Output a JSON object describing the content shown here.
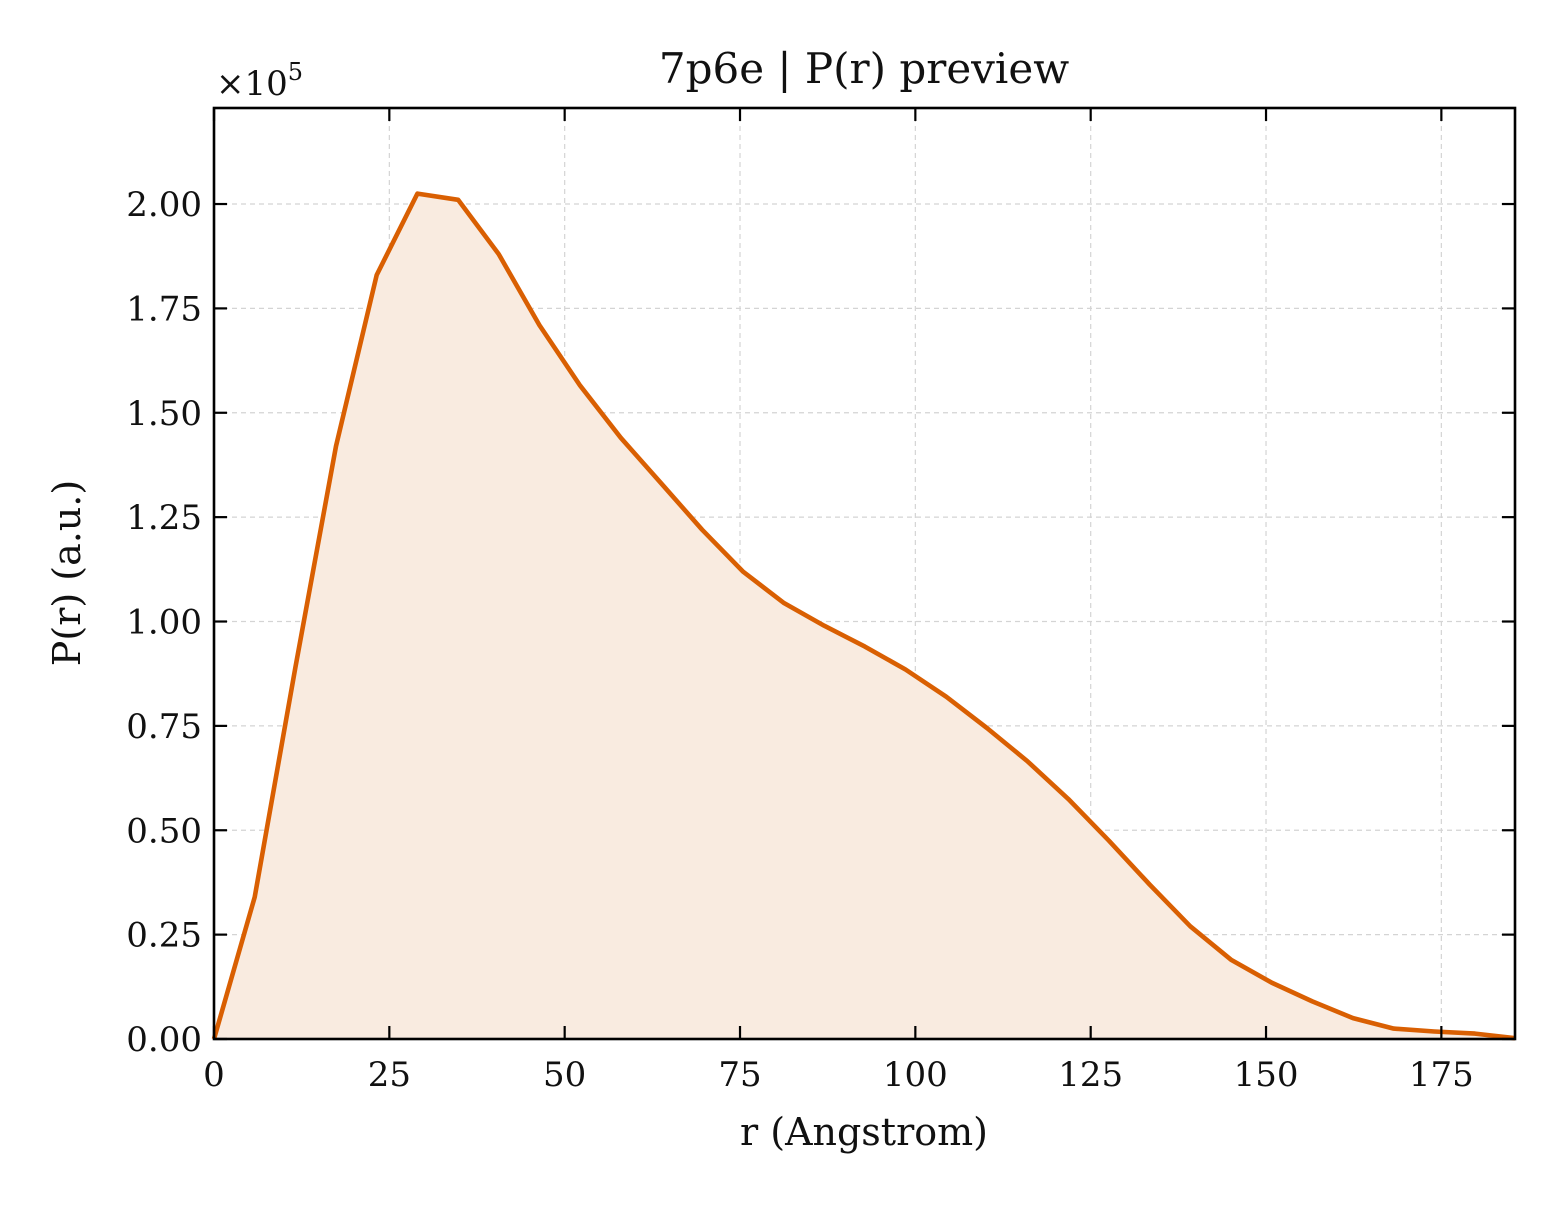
{
  "chart_data": {
    "type": "area",
    "title": "7p6e | P(r) preview",
    "xlabel": "r (Angstrom)",
    "ylabel": "P(r) (a.u.)",
    "y_multiplier_label": "×10",
    "y_multiplier_exponent": "5",
    "xlim": [
      0,
      185.5
    ],
    "ylim": [
      0,
      2.23
    ],
    "y_scale_factor": 100000,
    "grid": true,
    "line_color": "#d95f02",
    "fill_color": "#f9ebe0",
    "x_ticks": [
      0,
      25,
      50,
      75,
      100,
      125,
      150,
      175
    ],
    "x_tick_labels": [
      "0",
      "25",
      "50",
      "75",
      "100",
      "125",
      "150",
      "175"
    ],
    "y_ticks": [
      0,
      0.25,
      0.5,
      0.75,
      1.0,
      1.25,
      1.5,
      1.75,
      2.0
    ],
    "y_tick_labels": [
      "0.00",
      "0.25",
      "0.50",
      "0.75",
      "1.00",
      "1.25",
      "1.50",
      "1.75",
      "2.00"
    ],
    "series": [
      {
        "x": [
          0,
          5.8,
          11.6,
          17.4,
          23.2,
          29.0,
          34.8,
          40.6,
          46.4,
          52.2,
          58.0,
          63.8,
          69.6,
          75.4,
          81.2,
          87.0,
          92.8,
          98.6,
          104.4,
          110.2,
          116.0,
          121.8,
          127.6,
          133.4,
          139.2,
          145.0,
          150.8,
          156.6,
          162.4,
          168.2,
          174.0,
          179.8,
          185.5
        ],
        "y": [
          0.0,
          0.34,
          0.89,
          1.42,
          1.83,
          2.025,
          2.01,
          1.88,
          1.71,
          1.565,
          1.44,
          1.33,
          1.22,
          1.12,
          1.045,
          0.99,
          0.94,
          0.885,
          0.82,
          0.745,
          0.665,
          0.575,
          0.475,
          0.37,
          0.27,
          0.19,
          0.135,
          0.09,
          0.05,
          0.025,
          0.018,
          0.013,
          0.002
        ]
      }
    ]
  }
}
